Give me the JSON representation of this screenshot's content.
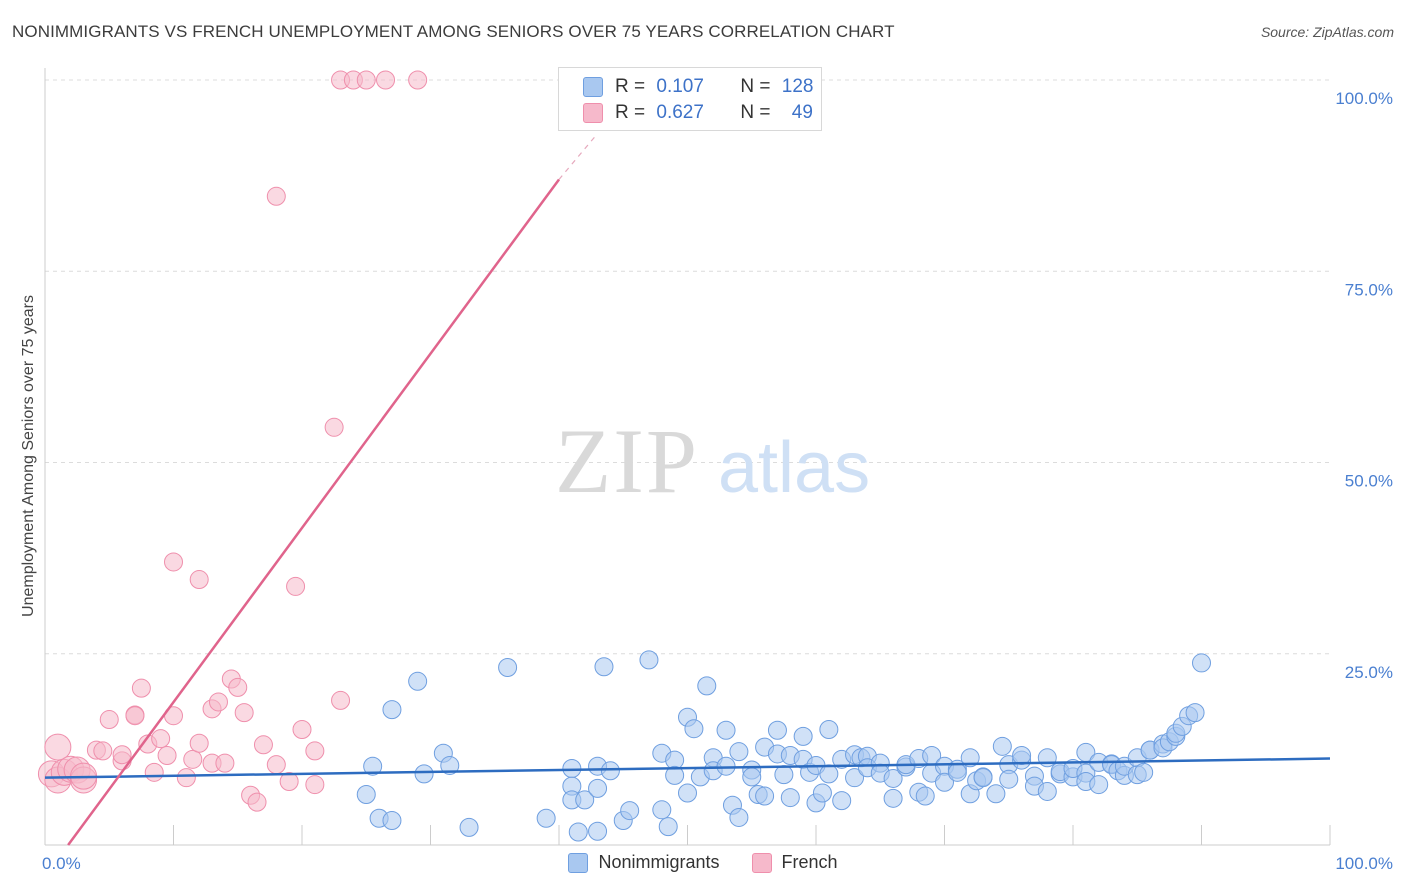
{
  "title": "NONIMMIGRANTS VS FRENCH UNEMPLOYMENT AMONG SENIORS OVER 75 YEARS CORRELATION CHART",
  "source": "Source: ZipAtlas.com",
  "watermark": {
    "zip": "ZIP",
    "atlas": "atlas"
  },
  "colors": {
    "blue_fill": "#a9c8f0",
    "blue_stroke": "#6f9fe0",
    "blue_line": "#2d6cc0",
    "pink_fill": "#f6b9cb",
    "pink_stroke": "#ef8fac",
    "pink_line": "#e0648c",
    "grid": "#dcdcdc",
    "tick_label": "#4a7fd0"
  },
  "legend": {
    "rows": [
      {
        "r_label": "R =",
        "r_value": "0.107",
        "n_label": "N =",
        "n_value": "128"
      },
      {
        "r_label": "R =",
        "r_value": "0.627",
        "n_label": "N =",
        "n_value": "49"
      }
    ]
  },
  "chart_data": {
    "type": "scatter",
    "title": "NONIMMIGRANTS VS FRENCH UNEMPLOYMENT AMONG SENIORS OVER 75 YEARS CORRELATION CHART",
    "xlabel": "",
    "ylabel": "Unemployment Among Seniors over 75 years",
    "xlim": [
      0,
      100
    ],
    "ylim": [
      0,
      100
    ],
    "x_tick_labels": [
      "0.0%",
      "100.0%"
    ],
    "y_ticks": [
      25,
      50,
      75,
      100
    ],
    "y_tick_labels": [
      "25.0%",
      "50.0%",
      "75.0%",
      "100.0%"
    ],
    "grid": true,
    "legend_position": "top-center",
    "series": [
      {
        "name": "Nonimmigrants",
        "r": 0.107,
        "n": 128,
        "trend": {
          "x": [
            0,
            100
          ],
          "y": [
            8.8,
            11.3
          ]
        },
        "points": [
          [
            25,
            6.6
          ],
          [
            25.5,
            10.3
          ],
          [
            26,
            3.5
          ],
          [
            27,
            3.2
          ],
          [
            27,
            17.7
          ],
          [
            29,
            21.4
          ],
          [
            29.5,
            9.3
          ],
          [
            31,
            12.0
          ],
          [
            31.5,
            10.4
          ],
          [
            33,
            2.3
          ],
          [
            36,
            23.2
          ],
          [
            39,
            3.5
          ],
          [
            41,
            10.0
          ],
          [
            41,
            7.7
          ],
          [
            41,
            5.9
          ],
          [
            41.5,
            1.7
          ],
          [
            42,
            5.9
          ],
          [
            43,
            1.8
          ],
          [
            43,
            7.4
          ],
          [
            43,
            10.3
          ],
          [
            43.5,
            23.3
          ],
          [
            44,
            9.7
          ],
          [
            45,
            3.2
          ],
          [
            45.5,
            4.5
          ],
          [
            47,
            24.2
          ],
          [
            48,
            12.0
          ],
          [
            48,
            4.6
          ],
          [
            48.5,
            2.4
          ],
          [
            49,
            11.1
          ],
          [
            49,
            9.1
          ],
          [
            50,
            16.7
          ],
          [
            50,
            6.8
          ],
          [
            50.5,
            15.2
          ],
          [
            51,
            8.9
          ],
          [
            51.5,
            20.8
          ],
          [
            52,
            11.4
          ],
          [
            52,
            9.7
          ],
          [
            53,
            15.0
          ],
          [
            53,
            10.3
          ],
          [
            53.5,
            5.2
          ],
          [
            54,
            12.2
          ],
          [
            54,
            3.6
          ],
          [
            55,
            9.8
          ],
          [
            55,
            8.9
          ],
          [
            55.5,
            6.6
          ],
          [
            56,
            12.8
          ],
          [
            56,
            6.4
          ],
          [
            57,
            11.9
          ],
          [
            57,
            15.0
          ],
          [
            57.5,
            9.2
          ],
          [
            58,
            11.7
          ],
          [
            58,
            6.2
          ],
          [
            59,
            14.2
          ],
          [
            59,
            11.2
          ],
          [
            59.5,
            9.5
          ],
          [
            60,
            10.4
          ],
          [
            60,
            5.5
          ],
          [
            60.5,
            6.8
          ],
          [
            61,
            15.1
          ],
          [
            61,
            9.3
          ],
          [
            62,
            11.2
          ],
          [
            62,
            5.8
          ],
          [
            63,
            11.8
          ],
          [
            63,
            8.8
          ],
          [
            63.5,
            11.4
          ],
          [
            64,
            11.6
          ],
          [
            64,
            10.1
          ],
          [
            65,
            10.7
          ],
          [
            65,
            9.4
          ],
          [
            66,
            6.1
          ],
          [
            66,
            8.7
          ],
          [
            67,
            10.2
          ],
          [
            67,
            10.5
          ],
          [
            68,
            11.3
          ],
          [
            68,
            6.9
          ],
          [
            68.5,
            6.4
          ],
          [
            69,
            9.4
          ],
          [
            69,
            11.7
          ],
          [
            70,
            10.3
          ],
          [
            70,
            8.2
          ],
          [
            71,
            9.9
          ],
          [
            71,
            9.5
          ],
          [
            72,
            11.4
          ],
          [
            72,
            6.7
          ],
          [
            72.5,
            8.4
          ],
          [
            73,
            8.9
          ],
          [
            73,
            8.8
          ],
          [
            74,
            6.7
          ],
          [
            74.5,
            12.9
          ],
          [
            75,
            10.5
          ],
          [
            75,
            8.6
          ],
          [
            76,
            11.1
          ],
          [
            76,
            11.7
          ],
          [
            77,
            9.0
          ],
          [
            77,
            7.7
          ],
          [
            78,
            7.0
          ],
          [
            78,
            11.4
          ],
          [
            79,
            9.3
          ],
          [
            79,
            9.6
          ],
          [
            80,
            8.9
          ],
          [
            80,
            10.0
          ],
          [
            81,
            9.4
          ],
          [
            81,
            8.3
          ],
          [
            81,
            12.1
          ],
          [
            82,
            7.9
          ],
          [
            82,
            10.8
          ],
          [
            83,
            10.6
          ],
          [
            83,
            10.5
          ],
          [
            83.5,
            9.7
          ],
          [
            84,
            9.1
          ],
          [
            84,
            10.3
          ],
          [
            85,
            9.2
          ],
          [
            85,
            11.4
          ],
          [
            85.5,
            9.5
          ],
          [
            86,
            12.4
          ],
          [
            86,
            12.4
          ],
          [
            87,
            13.2
          ],
          [
            87,
            12.7
          ],
          [
            87.5,
            13.5
          ],
          [
            88,
            14.2
          ],
          [
            88,
            14.6
          ],
          [
            88.5,
            15.5
          ],
          [
            89,
            16.9
          ],
          [
            89.5,
            17.3
          ],
          [
            90,
            23.8
          ]
        ]
      },
      {
        "name": "French",
        "r": 0.627,
        "n": 49,
        "trend": {
          "x": [
            0,
            40
          ],
          "y": [
            0,
            87
          ],
          "dashed_to": [
            43,
            93
          ]
        },
        "points": [
          [
            0.5,
            9.3
          ],
          [
            1,
            8.5
          ],
          [
            1,
            12.8
          ],
          [
            1.5,
            9.5
          ],
          [
            2,
            9.9
          ],
          [
            2.5,
            9.8
          ],
          [
            3,
            8.5
          ],
          [
            3,
            9.0
          ],
          [
            4,
            12.4
          ],
          [
            4.5,
            12.3
          ],
          [
            5,
            16.4
          ],
          [
            6,
            11.0
          ],
          [
            6,
            11.8
          ],
          [
            7,
            17.0
          ],
          [
            7,
            16.9
          ],
          [
            7.5,
            20.5
          ],
          [
            8,
            13.2
          ],
          [
            8.5,
            9.5
          ],
          [
            9,
            13.9
          ],
          [
            9.5,
            11.7
          ],
          [
            10,
            16.9
          ],
          [
            10,
            37.0
          ],
          [
            11,
            8.8
          ],
          [
            11.5,
            11.2
          ],
          [
            12,
            13.3
          ],
          [
            12,
            34.7
          ],
          [
            13,
            10.7
          ],
          [
            13,
            17.8
          ],
          [
            13.5,
            18.7
          ],
          [
            14,
            10.7
          ],
          [
            14.5,
            21.7
          ],
          [
            15,
            20.6
          ],
          [
            15.5,
            17.3
          ],
          [
            16,
            6.5
          ],
          [
            16.5,
            5.6
          ],
          [
            17,
            13.1
          ],
          [
            18,
            10.5
          ],
          [
            18,
            84.8
          ],
          [
            19,
            8.3
          ],
          [
            19.5,
            33.8
          ],
          [
            20,
            15.1
          ],
          [
            21,
            7.9
          ],
          [
            21,
            12.3
          ],
          [
            22.5,
            54.6
          ],
          [
            23,
            18.9
          ],
          [
            23,
            100
          ],
          [
            24,
            100
          ],
          [
            25,
            100
          ],
          [
            26.5,
            100
          ],
          [
            29,
            100
          ]
        ]
      }
    ]
  },
  "bottom_legend": [
    {
      "label": "Nonimmigrants"
    },
    {
      "label": "French"
    }
  ]
}
